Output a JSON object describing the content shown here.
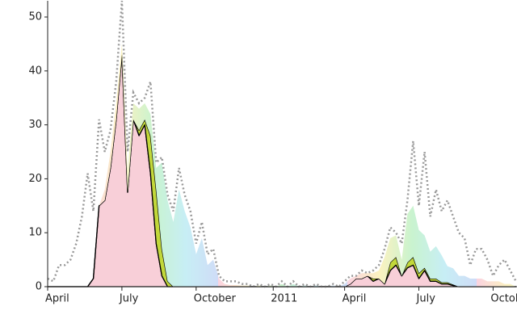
{
  "chart_data": {
    "type": "stacked-area",
    "x": [
      0,
      1,
      2,
      3,
      4,
      5,
      6,
      7,
      8,
      9,
      10,
      11,
      12,
      13,
      14,
      15,
      16,
      17,
      18,
      19,
      20,
      21,
      22,
      23,
      24,
      25,
      26,
      27,
      28,
      29,
      30,
      31,
      32,
      33,
      34,
      35,
      36,
      37,
      38,
      39,
      40,
      41,
      42,
      43,
      44,
      45,
      46,
      47,
      48,
      49,
      50,
      51,
      52,
      53,
      54,
      55,
      56,
      57,
      58,
      59,
      60,
      61,
      62,
      63,
      64,
      65,
      66,
      67,
      68,
      69,
      70,
      71,
      72,
      73,
      74,
      75,
      76,
      77,
      78,
      79,
      80,
      81,
      82
    ],
    "series": [
      {
        "color": "#f8cfd8",
        "stroke": "#000000",
        "values": [
          0,
          0,
          0,
          0,
          0,
          0,
          0,
          0,
          1.5,
          15,
          16,
          22,
          31,
          43,
          17.5,
          31,
          28,
          30,
          21,
          8,
          2,
          0,
          0,
          0,
          0,
          0,
          0,
          0,
          0,
          0,
          0,
          0,
          0,
          0,
          0,
          0,
          0,
          0,
          0,
          0,
          0,
          0,
          0,
          0,
          0,
          0,
          0,
          0,
          0,
          0,
          0,
          0,
          0,
          0.5,
          1.5,
          1.5,
          2,
          1,
          1.5,
          0.5,
          3,
          4,
          2,
          3.5,
          4,
          1.5,
          3,
          1,
          1,
          0.5,
          0.5,
          0.2,
          0,
          0,
          0,
          0,
          0,
          0,
          0,
          0,
          0,
          0,
          0
        ]
      },
      {
        "color": "#c2d83a",
        "stroke": "#000000",
        "values": [
          0,
          0,
          0,
          0,
          0,
          0,
          0,
          0,
          0,
          0,
          0,
          0,
          0,
          0,
          0,
          0,
          1,
          1,
          7,
          10,
          5,
          1,
          0,
          0,
          0,
          0,
          0,
          0,
          0,
          0,
          0,
          0,
          0,
          0,
          0,
          0,
          0,
          0,
          0,
          0,
          0,
          0,
          0,
          0,
          0,
          0,
          0,
          0,
          0,
          0,
          0,
          0,
          0,
          0,
          0,
          0,
          0,
          0.5,
          0,
          0,
          1.5,
          1.5,
          0,
          1,
          1.5,
          1,
          0.5,
          0.5,
          0.5,
          0.3,
          0.3,
          0.2,
          0,
          0,
          0,
          0,
          0,
          0,
          0,
          0,
          0,
          0,
          0
        ]
      },
      {
        "colors": [
          "#fbd3e0",
          "#fbf2c0",
          "#c9f3cf",
          "#c7eef5",
          "#cfdcf7"
        ],
        "values": [
          0,
          0,
          0,
          0,
          0,
          0,
          0,
          0,
          0,
          0,
          2,
          3,
          3,
          2,
          4,
          3,
          4,
          3,
          4,
          4,
          16,
          15,
          12,
          18,
          14,
          11,
          6,
          9,
          4,
          5,
          1.5,
          0.5,
          0.3,
          0.3,
          0.2,
          0.2,
          0,
          0.2,
          0,
          0.2,
          0,
          0.5,
          0,
          0.5,
          0,
          0.2,
          0,
          0.2,
          0,
          0,
          0.2,
          0,
          0.5,
          1,
          0.5,
          1,
          0.5,
          1,
          1.5,
          5,
          4.5,
          4,
          3,
          9,
          9.5,
          8,
          6,
          5,
          6,
          5,
          3,
          3,
          2,
          2,
          1.5,
          1.5,
          1.5,
          1,
          1,
          1,
          0.5,
          0.5,
          0
        ]
      }
    ],
    "total": {
      "color": "#999999",
      "values": [
        1.5,
        1,
        4,
        4,
        5,
        8,
        13,
        21,
        14,
        31,
        25,
        29,
        38,
        53,
        25,
        36,
        34,
        35,
        38,
        23,
        24,
        17,
        14,
        22,
        17,
        14,
        8,
        12,
        6,
        7,
        2,
        1,
        1,
        1,
        0.5,
        0.5,
        0,
        0.5,
        0,
        0.5,
        0,
        1,
        0,
        1,
        0,
        0.5,
        0,
        0.5,
        0,
        0,
        0.5,
        0,
        1,
        2,
        2,
        3,
        2.5,
        3,
        4,
        7,
        11,
        10,
        8,
        16,
        27,
        15,
        25,
        13,
        18,
        14,
        16,
        13,
        10,
        9,
        4,
        7,
        7,
        5,
        2,
        4,
        5,
        3,
        1
      ]
    },
    "xlim": [
      0,
      82
    ],
    "xticks": [
      {
        "value": 0,
        "label": "April"
      },
      {
        "value": 13,
        "label": "July"
      },
      {
        "value": 26,
        "label": "October"
      },
      {
        "value": 39.5,
        "label": "2011"
      },
      {
        "value": 52,
        "label": "April"
      },
      {
        "value": 65,
        "label": "July"
      },
      {
        "value": 78,
        "label": "October"
      }
    ],
    "ylim": [
      0,
      53
    ],
    "yticks": [
      0,
      10,
      20,
      30,
      40,
      50
    ]
  }
}
